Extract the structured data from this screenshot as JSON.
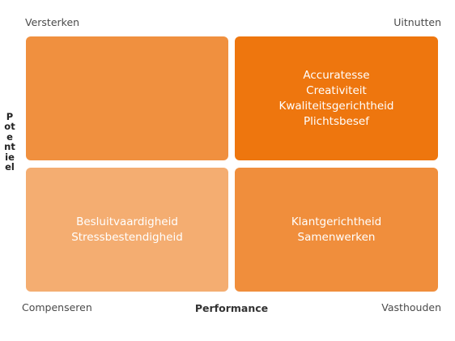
{
  "corners": {
    "top_left": "Versterken",
    "top_right": "Uitnutten",
    "bottom_left": "Compenseren",
    "bottom_right": "Vasthouden"
  },
  "axes": {
    "x_label": "Performance",
    "y_label": "Potentieel"
  },
  "quadrants": {
    "top_left": {
      "items": [],
      "color": "#f0903f"
    },
    "top_right": {
      "items": [
        "Accuratesse",
        "Creativiteit",
        "Kwaliteitsgerichtheid",
        "Plichtsbesef"
      ],
      "color": "#ee760e"
    },
    "bottom_left": {
      "items": [
        "Besluitvaardigheid",
        "Stressbestendigheid"
      ],
      "color": "#f4ad71"
    },
    "bottom_right": {
      "items": [
        "Klantgerichtheid",
        "Samenwerken"
      ],
      "color": "#f08e3c"
    }
  }
}
